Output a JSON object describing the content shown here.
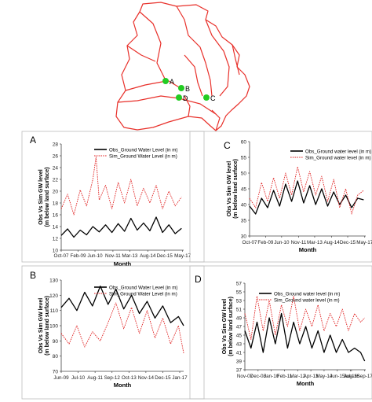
{
  "map": {
    "points": [
      {
        "label": "A",
        "color": "#22cc22"
      },
      {
        "label": "B",
        "color": "#22cc22"
      },
      {
        "label": "D",
        "color": "#22cc22"
      },
      {
        "label": "C",
        "color": "#22cc22"
      }
    ],
    "boundary_color": "#e8302a"
  },
  "chart_data": [
    {
      "id": "A",
      "panel_letter": "A",
      "type": "line",
      "ylabel": "Obs Vs Sim GW level (m below land surface)",
      "ylabel_lines": [
        "Obs Vs Sim GW level",
        "(m below land surface)"
      ],
      "xlabel": "Month",
      "ylim": [
        10,
        28
      ],
      "yticks": [
        10,
        12,
        14,
        16,
        18,
        20,
        22,
        24,
        26,
        28
      ],
      "x_start": "2007-10",
      "x_end": "2017-06",
      "xticks": [
        {
          "date": "2007-10",
          "label": "Oct-07"
        },
        {
          "date": "2009-02",
          "label": "Feb-09"
        },
        {
          "date": "2010-06",
          "label": "Jun-10"
        },
        {
          "date": "2011-11",
          "label": "Nov-11"
        },
        {
          "date": "2013-03",
          "label": "Mar-13"
        },
        {
          "date": "2014-08",
          "label": "Aug-14"
        },
        {
          "date": "2015-12",
          "label": "Dec-15"
        },
        {
          "date": "2017-05",
          "label": "May-17"
        }
      ],
      "legend_position": "top-center",
      "series": [
        {
          "name": "Obs_Ground Water Level (in m)",
          "color": "#000000",
          "dash": "solid",
          "x": [
            "2007-10",
            "2008-04",
            "2008-10",
            "2009-04",
            "2009-10",
            "2010-04",
            "2010-10",
            "2011-04",
            "2011-10",
            "2012-04",
            "2012-10",
            "2013-04",
            "2013-10",
            "2014-04",
            "2014-10",
            "2015-04",
            "2015-10",
            "2016-04",
            "2016-10",
            "2017-04"
          ],
          "values": [
            12.5,
            13.6,
            12.2,
            13.4,
            12.6,
            14.0,
            13.1,
            14.3,
            13.0,
            14.5,
            13.2,
            15.4,
            13.4,
            14.6,
            13.3,
            15.6,
            13.0,
            14.3,
            12.8,
            13.7
          ]
        },
        {
          "name": "Sim_Ground Water Level (in m)",
          "color": "#e02020",
          "dash": "dotted",
          "x": [
            "2007-10",
            "2008-04",
            "2008-10",
            "2009-04",
            "2009-10",
            "2010-04",
            "2010-07",
            "2010-10",
            "2011-04",
            "2011-10",
            "2012-04",
            "2012-10",
            "2013-04",
            "2013-10",
            "2014-04",
            "2014-10",
            "2015-04",
            "2015-10",
            "2016-04",
            "2016-10",
            "2017-04"
          ],
          "values": [
            17.0,
            19.5,
            16.0,
            20.2,
            17.5,
            22.0,
            25.8,
            18.5,
            21.0,
            17.0,
            21.5,
            18.0,
            22.0,
            17.5,
            20.5,
            18.0,
            21.0,
            17.0,
            20.0,
            17.5,
            19.0
          ]
        }
      ]
    },
    {
      "id": "C",
      "panel_letter": "C",
      "type": "line",
      "ylabel": "Obs Vs Sim GW level (m below land surface)",
      "ylabel_lines": [
        "Obs Vs Sim GW level",
        "(m below land surface)"
      ],
      "xlabel": "Month",
      "ylim": [
        30,
        60
      ],
      "yticks": [
        30,
        35,
        40,
        45,
        50,
        55,
        60
      ],
      "x_start": "2007-10",
      "x_end": "2017-06",
      "xticks": [
        {
          "date": "2007-10",
          "label": "Oct-07"
        },
        {
          "date": "2009-02",
          "label": "Feb-09"
        },
        {
          "date": "2010-06",
          "label": "Jun-10"
        },
        {
          "date": "2011-11",
          "label": "Nov-11"
        },
        {
          "date": "2013-03",
          "label": "Mar-13"
        },
        {
          "date": "2014-08",
          "label": "Aug-14"
        },
        {
          "date": "2015-12",
          "label": "Dec-15"
        },
        {
          "date": "2017-05",
          "label": "May-17"
        }
      ],
      "legend_position": "top-right",
      "series": [
        {
          "name": "Obs_Ground water level (in m)",
          "color": "#000000",
          "dash": "solid",
          "x": [
            "2007-10",
            "2008-04",
            "2008-10",
            "2009-04",
            "2009-10",
            "2010-04",
            "2010-10",
            "2011-04",
            "2011-10",
            "2012-04",
            "2012-10",
            "2013-04",
            "2013-10",
            "2014-04",
            "2014-10",
            "2015-04",
            "2015-10",
            "2016-04",
            "2016-10",
            "2017-04"
          ],
          "values": [
            39.5,
            37.0,
            42.0,
            39.0,
            44.5,
            39.5,
            46.5,
            41.0,
            47.5,
            40.5,
            46.0,
            40.0,
            45.0,
            39.5,
            44.0,
            40.0,
            43.0,
            39.0,
            42.0,
            41.5
          ]
        },
        {
          "name": "Sim_Ground water level (in m)",
          "color": "#e02020",
          "dash": "dotted",
          "x": [
            "2007-10",
            "2008-04",
            "2008-10",
            "2009-04",
            "2009-10",
            "2010-04",
            "2010-10",
            "2011-04",
            "2011-10",
            "2012-04",
            "2012-10",
            "2013-04",
            "2013-10",
            "2014-04",
            "2014-10",
            "2015-04",
            "2015-10",
            "2016-04",
            "2016-10",
            "2017-04"
          ],
          "values": [
            42.0,
            39.0,
            47.0,
            41.0,
            48.5,
            42.0,
            50.0,
            43.0,
            52.0,
            44.0,
            50.5,
            43.0,
            49.0,
            41.0,
            48.0,
            39.0,
            45.0,
            37.0,
            43.0,
            44.5
          ]
        }
      ]
    },
    {
      "id": "B",
      "panel_letter": "B",
      "type": "line",
      "ylabel": "Obs Vs Sim GW level (m below land surface)",
      "ylabel_lines": [
        "Obs Vs Sim GW level",
        "(m below land surface)"
      ],
      "xlabel": "Month",
      "ylim": [
        70,
        130
      ],
      "yticks": [
        70,
        80,
        90,
        100,
        110,
        120,
        130
      ],
      "x_start": "2009-06",
      "x_end": "2017-04",
      "xticks": [
        {
          "date": "2009-06",
          "label": "Jun-09"
        },
        {
          "date": "2010-07",
          "label": "Jul-10"
        },
        {
          "date": "2011-08",
          "label": "Aug-11"
        },
        {
          "date": "2012-09",
          "label": "Sep-12"
        },
        {
          "date": "2013-10",
          "label": "Oct-13"
        },
        {
          "date": "2014-11",
          "label": "Nov-14"
        },
        {
          "date": "2015-12",
          "label": "Dec-15"
        },
        {
          "date": "2017-01",
          "label": "Jan-17"
        }
      ],
      "legend_position": "top-right",
      "series": [
        {
          "name": "Obs_Ground Water Level (in m)",
          "color": "#000000",
          "dash": "solid",
          "x": [
            "2009-06",
            "2009-12",
            "2010-06",
            "2010-12",
            "2011-06",
            "2011-12",
            "2012-06",
            "2012-12",
            "2013-06",
            "2013-12",
            "2014-06",
            "2014-12",
            "2015-06",
            "2015-12",
            "2016-06",
            "2016-12",
            "2017-04"
          ],
          "values": [
            112,
            118,
            110,
            122,
            113,
            126,
            114,
            124,
            111,
            120,
            108,
            116,
            105,
            113,
            102,
            106,
            100
          ]
        },
        {
          "name": "Sim_Ground Water Level (in m)",
          "color": "#e02020",
          "dash": "dotted",
          "x": [
            "2009-06",
            "2009-12",
            "2010-06",
            "2010-12",
            "2011-06",
            "2011-12",
            "2012-06",
            "2012-12",
            "2013-06",
            "2013-12",
            "2014-06",
            "2014-12",
            "2015-06",
            "2015-12",
            "2016-06",
            "2016-12",
            "2017-04"
          ],
          "values": [
            95,
            88,
            100,
            86,
            96,
            90,
            102,
            115,
            98,
            112,
            95,
            110,
            92,
            105,
            88,
            100,
            82
          ]
        }
      ]
    },
    {
      "id": "D",
      "panel_letter": "D",
      "type": "line",
      "ylabel": "Obs Vs Sim GW level (m below land surface)",
      "ylabel_lines": [
        "Obs Vs Sim GW level",
        "(m below land surface)"
      ],
      "xlabel": "Month",
      "ylim": [
        37,
        57
      ],
      "yticks": [
        37,
        39,
        41,
        43,
        45,
        47,
        49,
        51,
        53,
        55,
        57
      ],
      "x_start": "2007-11",
      "x_end": "2017-10",
      "xticks": [
        {
          "date": "2007-11",
          "label": "Nov-07"
        },
        {
          "date": "2008-12",
          "label": "Dec-08"
        },
        {
          "date": "2010-01",
          "label": "Jan-10"
        },
        {
          "date": "2011-02",
          "label": "Feb-11"
        },
        {
          "date": "2012-03",
          "label": "Mar-12"
        },
        {
          "date": "2013-04",
          "label": "Apr-13"
        },
        {
          "date": "2014-05",
          "label": "May-14"
        },
        {
          "date": "2015-06",
          "label": "Jun-15"
        },
        {
          "date": "2016-07",
          "label": "Jul-16"
        },
        {
          "date": "2016-08",
          "label": "Aug-16"
        },
        {
          "date": "2017-09",
          "label": "Sep-17"
        }
      ],
      "legend_position": "top-center",
      "series": [
        {
          "name": "Obs_Ground water level (in m)",
          "color": "#000000",
          "dash": "solid",
          "x": [
            "2007-11",
            "2008-05",
            "2008-11",
            "2009-05",
            "2009-11",
            "2010-05",
            "2010-11",
            "2011-05",
            "2011-11",
            "2012-05",
            "2012-11",
            "2013-05",
            "2013-11",
            "2014-05",
            "2014-11",
            "2015-05",
            "2015-11",
            "2016-05",
            "2016-11",
            "2017-05",
            "2017-09"
          ],
          "values": [
            46,
            42,
            48,
            41,
            49,
            43,
            50,
            42,
            48,
            43,
            47,
            42,
            46,
            41,
            45,
            41,
            44,
            41,
            42,
            41,
            39
          ]
        },
        {
          "name": "Sim_Ground water level (in m)",
          "color": "#e02020",
          "dash": "dotted",
          "x": [
            "2007-11",
            "2008-05",
            "2008-11",
            "2009-05",
            "2009-11",
            "2010-05",
            "2010-11",
            "2011-05",
            "2011-11",
            "2012-05",
            "2012-11",
            "2013-05",
            "2013-11",
            "2014-05",
            "2014-11",
            "2015-05",
            "2015-11",
            "2016-05",
            "2016-11",
            "2017-05",
            "2017-09"
          ],
          "values": [
            50,
            44,
            54,
            46,
            53,
            45,
            52,
            47,
            54,
            46,
            51,
            47,
            52,
            46,
            50,
            47,
            51,
            46,
            50,
            48,
            49
          ]
        }
      ]
    }
  ]
}
